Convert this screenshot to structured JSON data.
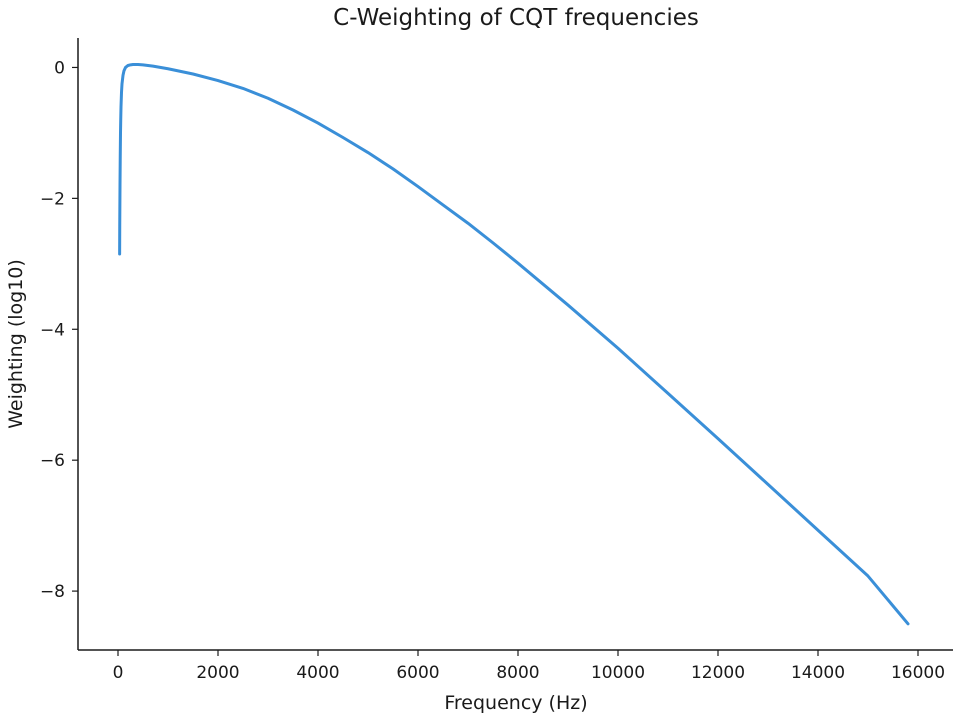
{
  "chart_data": {
    "type": "line",
    "title": "C-Weighting of CQT frequencies",
    "xlabel": "Frequency (Hz)",
    "ylabel": "Weighting (log10)",
    "xlim": [
      -800,
      16700
    ],
    "ylim": [
      -8.9,
      0.45
    ],
    "x_ticks": [
      0,
      2000,
      4000,
      6000,
      8000,
      10000,
      12000,
      14000,
      16000
    ],
    "x_tick_labels": [
      "0",
      "2000",
      "4000",
      "6000",
      "8000",
      "10000",
      "12000",
      "14000",
      "16000"
    ],
    "y_ticks": [
      0,
      -2,
      -4,
      -6,
      -8
    ],
    "y_tick_labels": [
      "0",
      "−2",
      "−4",
      "−6",
      "−8"
    ],
    "grid": false,
    "legend": "none",
    "colors": {
      "line": "#3a8fd8",
      "axis": "#1a1a1a"
    },
    "series": [
      {
        "x": [
          32.7,
          35,
          40,
          45,
          50,
          55,
          60,
          70,
          80,
          100,
          120,
          150,
          200,
          250,
          300,
          400,
          500,
          700,
          1000,
          1500,
          2000,
          2500,
          3000,
          3500,
          4000,
          4500,
          5000,
          5500,
          6000,
          6500,
          7000,
          7500,
          8000,
          9000,
          10000,
          11000,
          12000,
          13000,
          14000,
          15000,
          15800
        ],
        "y": [
          -2.85,
          -2.4,
          -1.8,
          -1.35,
          -1.0,
          -0.78,
          -0.6,
          -0.38,
          -0.25,
          -0.12,
          -0.05,
          0.0,
          0.03,
          0.04,
          0.045,
          0.045,
          0.04,
          0.02,
          -0.02,
          -0.1,
          -0.2,
          -0.32,
          -0.47,
          -0.65,
          -0.85,
          -1.07,
          -1.3,
          -1.55,
          -1.82,
          -2.1,
          -2.38,
          -2.68,
          -2.99,
          -3.63,
          -4.29,
          -4.98,
          -5.67,
          -6.37,
          -7.07,
          -7.77,
          -8.5
        ]
      }
    ]
  }
}
